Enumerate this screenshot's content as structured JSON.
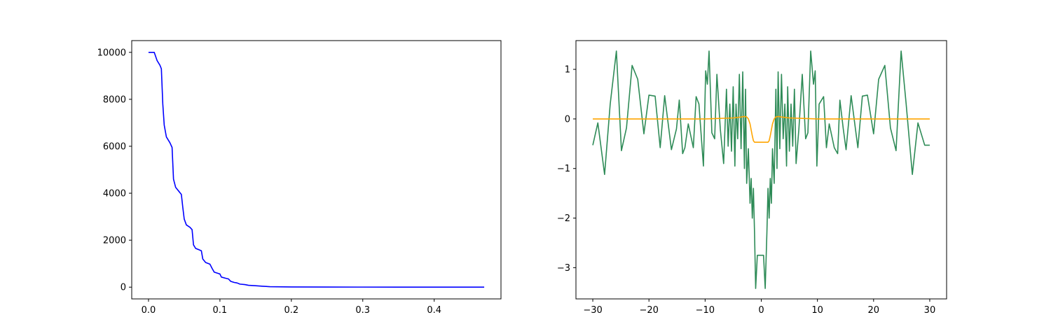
{
  "chart_data": [
    {
      "type": "line",
      "title": "",
      "xlabel": "",
      "ylabel": "",
      "xlim": [
        -0.0235,
        0.4935
      ],
      "ylim": [
        -500,
        10500
      ],
      "xticks": [
        0.0,
        0.1,
        0.2,
        0.3,
        0.4
      ],
      "xtick_labels": [
        "0.0",
        "0.1",
        "0.2",
        "0.3",
        "0.4"
      ],
      "yticks": [
        0,
        2000,
        4000,
        6000,
        8000,
        10000
      ],
      "ytick_labels": [
        "0",
        "2000",
        "4000",
        "6000",
        "8000",
        "10000"
      ],
      "grid": false,
      "series": [
        {
          "color": "#0000ff",
          "x": [
            0.0,
            0.008,
            0.012,
            0.016,
            0.018,
            0.02,
            0.022,
            0.025,
            0.03,
            0.033,
            0.035,
            0.038,
            0.042,
            0.046,
            0.048,
            0.05,
            0.053,
            0.058,
            0.061,
            0.063,
            0.066,
            0.07,
            0.074,
            0.076,
            0.08,
            0.086,
            0.089,
            0.092,
            0.098,
            0.1,
            0.102,
            0.108,
            0.112,
            0.115,
            0.12,
            0.124,
            0.128,
            0.135,
            0.14,
            0.15,
            0.16,
            0.17,
            0.18,
            0.2,
            0.25,
            0.3,
            0.35,
            0.4,
            0.47
          ],
          "y": [
            10000,
            10000,
            9650,
            9450,
            9300,
            7800,
            6900,
            6400,
            6150,
            5950,
            4600,
            4250,
            4100,
            3950,
            3400,
            2900,
            2650,
            2550,
            2450,
            1800,
            1650,
            1600,
            1550,
            1200,
            1050,
            980,
            800,
            640,
            580,
            560,
            430,
            380,
            350,
            250,
            200,
            180,
            130,
            110,
            80,
            60,
            40,
            20,
            15,
            10,
            5,
            3,
            2,
            1,
            0
          ]
        }
      ]
    },
    {
      "type": "line",
      "title": "",
      "xlabel": "",
      "ylabel": "",
      "xlim": [
        -33.0,
        33.0
      ],
      "ylim": [
        -3.63,
        1.58
      ],
      "xticks": [
        -30,
        -20,
        -10,
        0,
        10,
        20,
        30
      ],
      "xtick_labels": [
        "−30",
        "−20",
        "−10",
        "0",
        "10",
        "20",
        "30"
      ],
      "yticks": [
        -3,
        -2,
        -1,
        0,
        1
      ],
      "ytick_labels": [
        "−3",
        "−2",
        "−1",
        "0",
        "1"
      ],
      "grid": false,
      "series": [
        {
          "color": "#2e8b57",
          "x": [
            -30.0,
            -29.1,
            -27.9,
            -26.9,
            -25.8,
            -24.9,
            -24.0,
            -23.0,
            -22.0,
            -20.9,
            -20.0,
            -18.9,
            -18.0,
            -17.2,
            -16.0,
            -15.1,
            -14.6,
            -14.0,
            -13.6,
            -13.0,
            -12.1,
            -11.6,
            -11.1,
            -10.3,
            -9.9,
            -9.6,
            -9.3,
            -8.8,
            -8.3,
            -7.9,
            -7.3,
            -6.7,
            -6.2,
            -5.9,
            -5.6,
            -5.3,
            -5.0,
            -4.7,
            -4.5,
            -4.2,
            -3.9,
            -3.6,
            -3.3,
            -3.0,
            -2.8,
            -2.6,
            -2.3,
            -2.0,
            -1.8,
            -1.6,
            -1.4,
            -1.2,
            -1.0,
            -0.7,
            -0.4,
            0.0,
            0.4,
            0.7,
            1.0,
            1.2,
            1.4,
            1.6,
            1.8,
            2.0,
            2.3,
            2.6,
            2.8,
            3.0,
            3.3,
            3.6,
            3.9,
            4.2,
            4.5,
            4.7,
            5.0,
            5.3,
            5.6,
            5.9,
            6.2,
            6.7,
            7.3,
            7.9,
            8.3,
            8.8,
            9.3,
            9.6,
            9.9,
            10.3,
            11.1,
            11.6,
            12.1,
            13.0,
            13.6,
            14.0,
            14.6,
            15.1,
            16.0,
            17.2,
            18.0,
            18.9,
            20.0,
            20.9,
            22.0,
            23.0,
            24.0,
            24.9,
            25.8,
            26.9,
            27.9,
            29.1,
            30.0
          ],
          "y": [
            -0.53,
            -0.08,
            -1.12,
            0.3,
            1.37,
            -0.64,
            -0.18,
            1.08,
            0.8,
            -0.3,
            0.48,
            0.46,
            -0.58,
            0.47,
            -0.62,
            -0.2,
            0.38,
            -0.7,
            -0.58,
            -0.1,
            -0.58,
            0.45,
            0.3,
            -0.95,
            0.97,
            0.7,
            1.37,
            -0.28,
            -0.4,
            0.9,
            -0.2,
            -0.9,
            0.6,
            -0.55,
            0.3,
            -0.65,
            0.65,
            -0.95,
            0.3,
            -0.4,
            0.9,
            -0.6,
            0.95,
            -1.0,
            0.6,
            -1.3,
            -0.6,
            -1.7,
            -1.2,
            -2.0,
            -1.4,
            -2.3,
            -3.42,
            -2.75,
            -2.75,
            -2.75,
            -2.75,
            -3.42,
            -2.3,
            -1.4,
            -2.0,
            -1.2,
            -1.7,
            -0.6,
            -1.3,
            0.6,
            -1.0,
            0.95,
            -0.6,
            0.9,
            -0.4,
            0.3,
            -0.95,
            0.65,
            -0.65,
            0.3,
            -0.55,
            0.6,
            -0.9,
            -0.2,
            0.9,
            -0.4,
            -0.28,
            1.37,
            0.7,
            0.97,
            -0.95,
            0.3,
            0.45,
            -0.58,
            -0.1,
            -0.58,
            -0.7,
            0.38,
            -0.2,
            -0.62,
            0.47,
            -0.58,
            0.46,
            0.48,
            -0.3,
            0.8,
            1.08,
            -0.18,
            -0.64,
            1.37,
            0.3,
            -1.12,
            -0.08,
            -0.53,
            -0.53
          ]
        },
        {
          "color": "#ffa500",
          "x": [
            -30.0,
            -20.0,
            -10.0,
            -5.0,
            -3.5,
            -3.0,
            -2.6,
            -2.3,
            -2.0,
            -1.8,
            -1.6,
            -1.4,
            -1.2,
            -1.0,
            -0.5,
            0.0,
            0.5,
            1.0,
            1.2,
            1.4,
            1.6,
            1.8,
            2.0,
            2.3,
            2.6,
            3.0,
            3.5,
            5.0,
            10.0,
            20.0,
            30.0
          ],
          "y": [
            0.0,
            0.0,
            0.0,
            0.02,
            0.04,
            0.05,
            0.04,
            0.0,
            -0.1,
            -0.22,
            -0.34,
            -0.44,
            -0.47,
            -0.47,
            -0.47,
            -0.47,
            -0.47,
            -0.47,
            -0.47,
            -0.44,
            -0.34,
            -0.22,
            -0.1,
            0.0,
            0.04,
            0.05,
            0.04,
            0.02,
            0.0,
            0.0,
            0.0
          ]
        }
      ]
    }
  ]
}
